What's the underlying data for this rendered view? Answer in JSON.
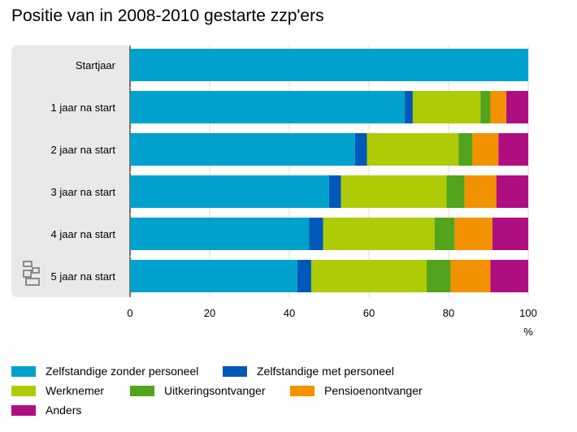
{
  "chart_data": {
    "type": "bar",
    "orientation": "horizontal",
    "stacked": true,
    "title": "Positie van in 2008-2010 gestarte zzp'ers",
    "xlabel": "%",
    "ylabel": "",
    "xlim": [
      0,
      100
    ],
    "x_ticks": [
      "0",
      "20",
      "40",
      "60",
      "80",
      "100"
    ],
    "grid": true,
    "legend_position": "bottom",
    "categories": [
      "Startjaar",
      "1 jaar na start",
      "2 jaar na start",
      "3 jaar na start",
      "4 jaar na start",
      "5 jaar na start"
    ],
    "series": [
      {
        "name": "Zelfstandige zonder personeel",
        "color": "#00a1cd",
        "values": [
          100,
          69,
          56.5,
          50,
          45,
          42
        ]
      },
      {
        "name": "Zelfstandige met personeel",
        "color": "#0058b8",
        "values": [
          0,
          2,
          3,
          3,
          3.5,
          3.5
        ]
      },
      {
        "name": "Werknemer",
        "color": "#afcb05",
        "values": [
          0,
          17,
          23,
          26.5,
          28,
          29
        ]
      },
      {
        "name": "Uitkeringsontvanger",
        "color": "#53a31d",
        "values": [
          0,
          2.5,
          3.5,
          4.5,
          5,
          6
        ]
      },
      {
        "name": "Pensioenontvanger",
        "color": "#f39200",
        "values": [
          0,
          4,
          6.5,
          8,
          9.5,
          10
        ]
      },
      {
        "name": "Anders",
        "color": "#af0e80",
        "values": [
          0,
          5.5,
          7.5,
          8,
          9,
          9.5
        ]
      }
    ]
  },
  "panel_color": "#e9e9e9",
  "logo": "cbs-logo"
}
